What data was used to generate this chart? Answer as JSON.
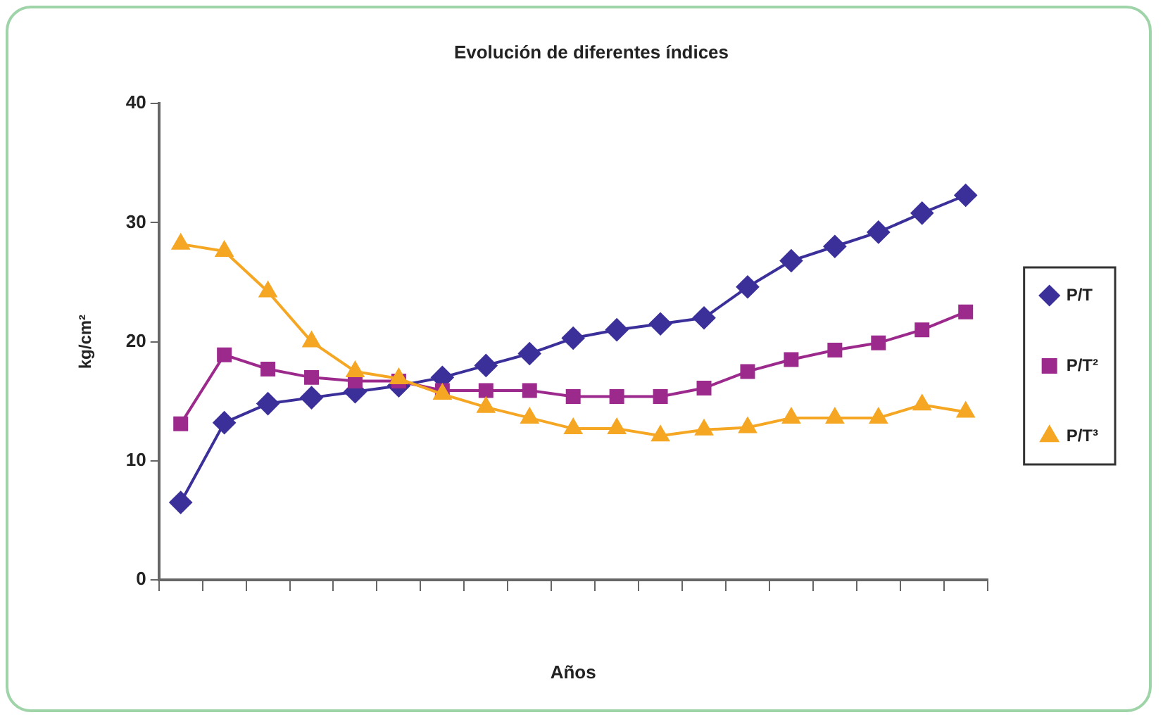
{
  "chart_data": {
    "type": "line",
    "title": "Evolución de diferentes índices",
    "xlabel": "Años",
    "ylabel": "kg/cm²",
    "categories": [
      null,
      null,
      null,
      null,
      null,
      null,
      null,
      null,
      null,
      null,
      null,
      null,
      null,
      null,
      null,
      null,
      null,
      null,
      null
    ],
    "series": [
      {
        "name": "P/T",
        "color": "#3b2f9a",
        "marker": "diamond",
        "values": [
          6.5,
          13.2,
          14.8,
          15.3,
          15.8,
          16.3,
          17,
          18,
          19,
          20.3,
          21,
          21.5,
          22,
          24.6,
          26.8,
          28,
          29.2,
          30.8,
          32.3
        ]
      },
      {
        "name": "P/T²",
        "color": "#9c2a8c",
        "marker": "square",
        "values": [
          13.1,
          18.9,
          17.7,
          17,
          16.7,
          16.7,
          15.9,
          15.9,
          15.9,
          15.4,
          15.4,
          15.4,
          16.1,
          17.5,
          18.5,
          19.3,
          19.9,
          21,
          22.5
        ]
      },
      {
        "name": "P/T³",
        "color": "#f5a623",
        "marker": "triangle",
        "values": [
          28.2,
          27.6,
          24.2,
          20,
          17.5,
          16.9,
          15.6,
          14.5,
          13.6,
          12.7,
          12.7,
          12.1,
          12.6,
          12.8,
          13.6,
          13.6,
          13.6,
          14.7,
          14.1
        ]
      }
    ],
    "ylim": [
      0,
      40
    ],
    "yticks": [
      0,
      10,
      20,
      30,
      40
    ],
    "grid": false,
    "legend": "right",
    "line_style": "solid"
  }
}
